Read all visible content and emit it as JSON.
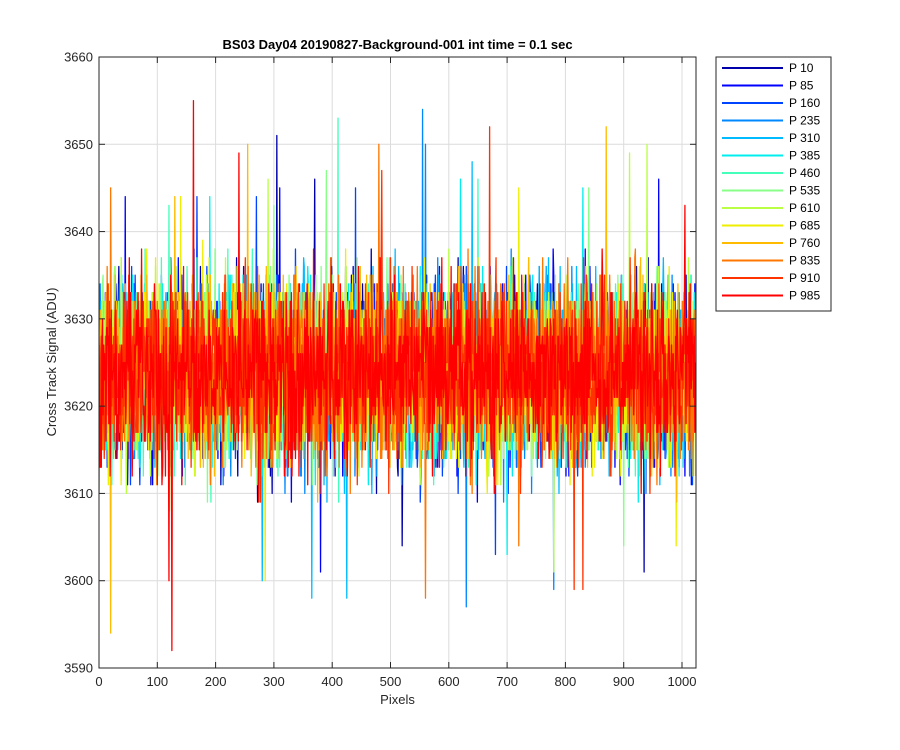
{
  "chart_data": {
    "type": "line",
    "title": "BS03 Day04 20190827-Background-001 int time = 0.1 sec",
    "xlabel": "Pixels",
    "ylabel": "Cross Track Signal (ADU)",
    "xlim": [
      0,
      1024
    ],
    "ylim": [
      3590,
      3660
    ],
    "xticks": [
      0,
      100,
      200,
      300,
      400,
      500,
      600,
      700,
      800,
      900,
      1000
    ],
    "yticks": [
      3590,
      3600,
      3610,
      3620,
      3630,
      3640,
      3650,
      3660
    ],
    "grid": true,
    "legend_position": "outside-top-right",
    "noise_model": {
      "pixel_count": 1024,
      "mean": 3624,
      "typical_low": 3610,
      "typical_high": 3640
    },
    "series": [
      {
        "name": "P 10",
        "color": "#0000aa",
        "spikes": [
          [
            305,
            3651
          ],
          [
            370,
            3646
          ],
          [
            520,
            3604
          ],
          [
            935,
            3601
          ]
        ]
      },
      {
        "name": "P 85",
        "color": "#0000ff",
        "spikes": [
          [
            45,
            3644
          ],
          [
            310,
            3645
          ],
          [
            380,
            3601
          ],
          [
            960,
            3646
          ]
        ]
      },
      {
        "name": "P 160",
        "color": "#0044ff",
        "spikes": [
          [
            168,
            3644
          ],
          [
            270,
            3644
          ],
          [
            440,
            3645
          ],
          [
            680,
            3603
          ]
        ]
      },
      {
        "name": "P 235",
        "color": "#0088ff",
        "spikes": [
          [
            555,
            3654
          ],
          [
            630,
            3597
          ],
          [
            780,
            3599
          ],
          [
            560,
            3650
          ]
        ]
      },
      {
        "name": "P 310",
        "color": "#00bbff",
        "spikes": [
          [
            365,
            3598
          ],
          [
            425,
            3598
          ],
          [
            280,
            3600
          ],
          [
            640,
            3648
          ]
        ]
      },
      {
        "name": "P 385",
        "color": "#00eeee",
        "spikes": [
          [
            190,
            3644
          ],
          [
            620,
            3646
          ],
          [
            700,
            3603
          ],
          [
            830,
            3645
          ]
        ]
      },
      {
        "name": "P 460",
        "color": "#44ffbb",
        "spikes": [
          [
            410,
            3653
          ],
          [
            650,
            3646
          ],
          [
            870,
            3645
          ],
          [
            120,
            3643
          ]
        ]
      },
      {
        "name": "P 535",
        "color": "#88ff88",
        "spikes": [
          [
            300,
            3643
          ],
          [
            390,
            3647
          ],
          [
            840,
            3645
          ],
          [
            900,
            3604
          ]
        ]
      },
      {
        "name": "P 610",
        "color": "#bbff44",
        "spikes": [
          [
            290,
            3646
          ],
          [
            780,
            3601
          ],
          [
            910,
            3649
          ],
          [
            940,
            3650
          ]
        ]
      },
      {
        "name": "P 685",
        "color": "#eeee00",
        "spikes": [
          [
            140,
            3644
          ],
          [
            285,
            3600
          ],
          [
            720,
            3645
          ],
          [
            990,
            3604
          ]
        ]
      },
      {
        "name": "P 760",
        "color": "#ffbb00",
        "spikes": [
          [
            20,
            3594
          ],
          [
            255,
            3650
          ],
          [
            870,
            3652
          ],
          [
            130,
            3644
          ]
        ]
      },
      {
        "name": "P 835",
        "color": "#ff7700",
        "spikes": [
          [
            20,
            3645
          ],
          [
            480,
            3650
          ],
          [
            560,
            3598
          ],
          [
            720,
            3604
          ]
        ]
      },
      {
        "name": "P 910",
        "color": "#ff3300",
        "spikes": [
          [
            670,
            3652
          ],
          [
            815,
            3599
          ],
          [
            830,
            3599
          ],
          [
            485,
            3647
          ]
        ]
      },
      {
        "name": "P 985",
        "color": "#ff0000",
        "spikes": [
          [
            162,
            3655
          ],
          [
            125,
            3592
          ],
          [
            240,
            3649
          ],
          [
            120,
            3600
          ],
          [
            1005,
            3643
          ]
        ]
      }
    ]
  }
}
